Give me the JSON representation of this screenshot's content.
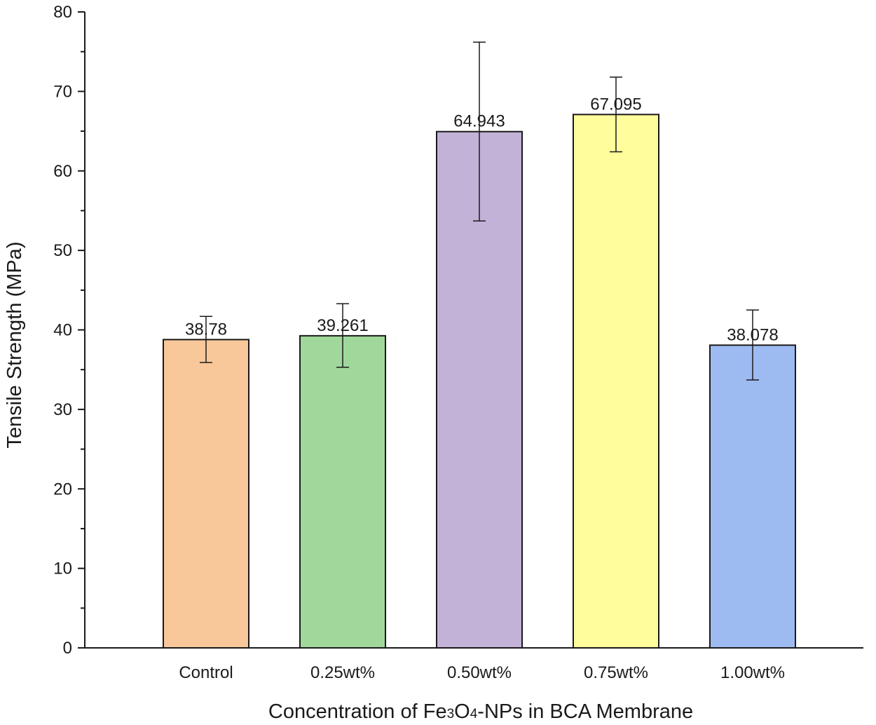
{
  "chart_data": {
    "type": "bar",
    "title": "",
    "xlabel_parts": [
      "Concentration of Fe",
      "3",
      "O",
      "4",
      "-NPs in BCA Membrane"
    ],
    "ylabel": "Tensile Strength (MPa)",
    "ylim": [
      0,
      80
    ],
    "yticks": [
      "0",
      "10",
      "20",
      "30",
      "40",
      "50",
      "60",
      "70",
      "80"
    ],
    "categories": [
      "Control",
      "0.25wt%",
      "0.50wt%",
      "0.75wt%",
      "1.00wt%"
    ],
    "values": [
      38.78,
      39.261,
      64.943,
      67.095,
      38.078
    ],
    "value_labels": [
      "38.78",
      "39.261",
      "64.943",
      "67.095",
      "38.078"
    ],
    "error_low": [
      35.9,
      35.3,
      53.7,
      62.4,
      33.7
    ],
    "error_high": [
      41.7,
      43.3,
      76.2,
      71.8,
      42.5
    ],
    "colors": [
      "#f8c89a",
      "#a0d89c",
      "#c2b2d8",
      "#fffd9c",
      "#9dbbf1"
    ],
    "grid": false,
    "legend": "none"
  }
}
